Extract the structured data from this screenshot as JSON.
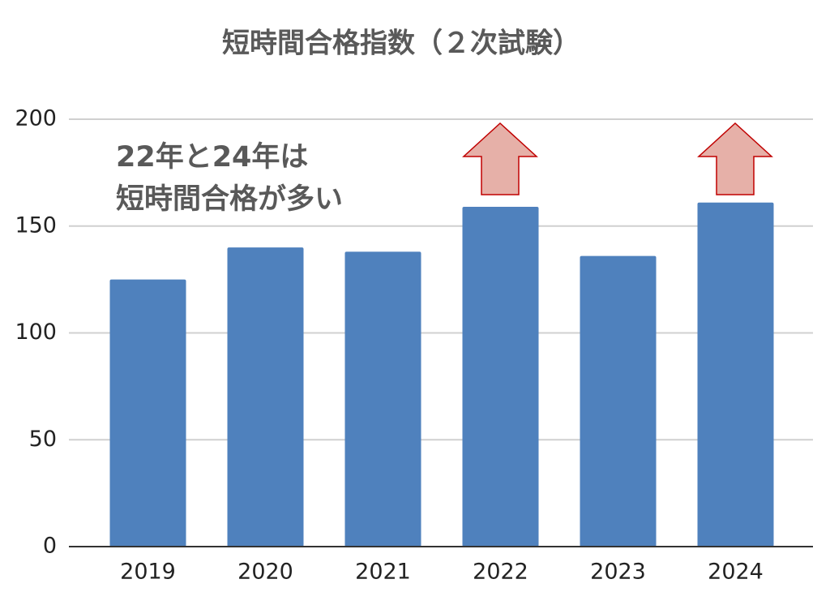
{
  "chart_data": {
    "type": "bar",
    "title": "短時間合格指数（２次試験）",
    "annotation": [
      "22年と24年は",
      "短時間合格が多い"
    ],
    "categories": [
      "2019",
      "2020",
      "2021",
      "2022",
      "2023",
      "2024"
    ],
    "values": [
      125,
      140,
      138,
      159,
      136,
      161
    ],
    "color": "#4f81bd",
    "ylim": [
      0,
      200
    ],
    "yticks": [
      0,
      50,
      100,
      150,
      200
    ],
    "grid": true
  }
}
